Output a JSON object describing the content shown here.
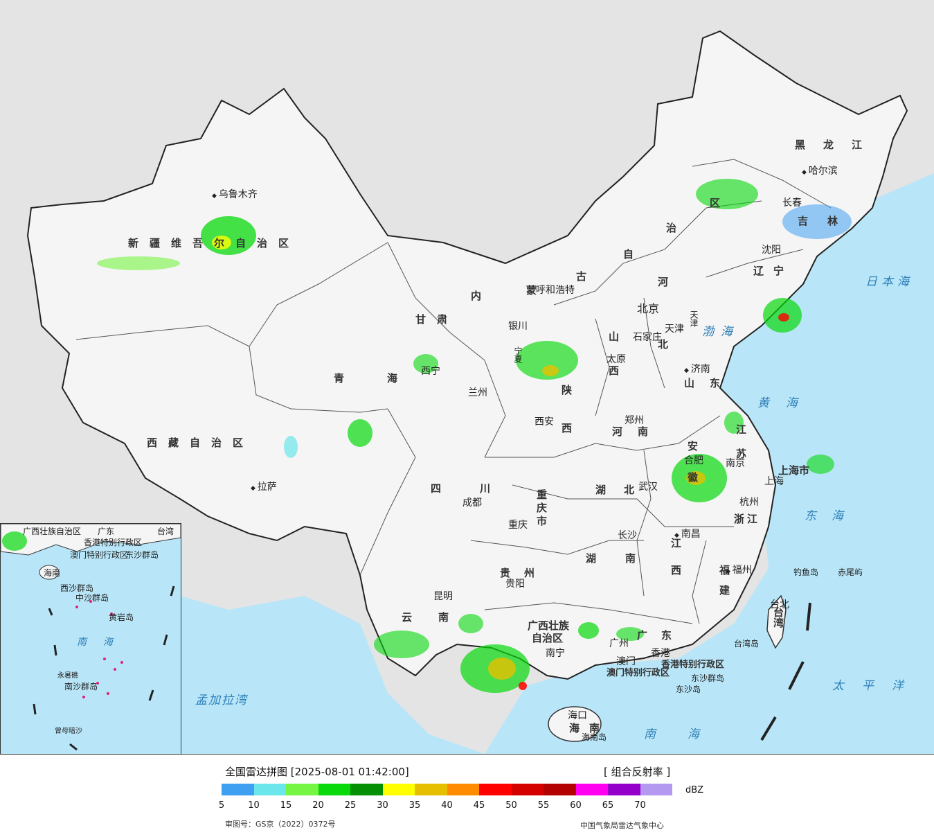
{
  "legend": {
    "title": "全国雷达拼图 [2025-08-01 01:42:00]",
    "product": "[ 组合反射率 ]",
    "unit": "dBZ",
    "review_number": "审图号：GS京（2022）0372号",
    "source": "中国气象局雷达气象中心",
    "ticks": [
      "5",
      "10",
      "15",
      "20",
      "25",
      "30",
      "35",
      "40",
      "45",
      "50",
      "55",
      "60",
      "65",
      "70"
    ],
    "colors": [
      "#3f9ff0",
      "#6be6ea",
      "#76f542",
      "#07d90b",
      "#048f04",
      "#ffff00",
      "#e6c000",
      "#ff8c00",
      "#ff0000",
      "#d40000",
      "#b30000",
      "#ff00f0",
      "#9400c9",
      "#b39af0"
    ]
  },
  "provinces": {
    "xinjiang": "新疆维吾尔自治区",
    "xizang": "西藏自治区",
    "qinghai": "青海",
    "gansu": "甘肃",
    "neimenggu_1": "内",
    "neimenggu_2": "蒙",
    "neimenggu_3": "古",
    "neimenggu_4": "自",
    "neimenggu_5": "治",
    "neimenggu_6": "区",
    "heilongjiang": "黑龙江",
    "jilin": "吉林",
    "liaoning": "辽宁",
    "hebei_1": "河",
    "hebei_2": "北",
    "shanxi": "山西",
    "shaanxi": "陕西",
    "henan": "河南",
    "shandong": "山东",
    "jiangsu": "江苏",
    "anhui": "安徽",
    "sichuan": "四川",
    "chongqing": "重庆市",
    "hubei": "湖北",
    "hunan": "湖南",
    "jiangxi": "江西",
    "zhejiang": "浙江",
    "fujian": "福建",
    "guizhou": "贵州",
    "yunnan": "云南",
    "guangxi_1": "广西壮族",
    "guangxi_2": "自治区",
    "guangdong": "广东",
    "hainan": "海南",
    "taiwan": "台湾",
    "ningxia": "宁夏",
    "shanghai": "上海市",
    "tianjin": "天津",
    "hongkong": "香港特别行政区",
    "macau": "澳门特别行政区"
  },
  "cities": {
    "urumqi": "乌鲁木齐",
    "lhasa": "拉萨",
    "xining": "西宁",
    "lanzhou": "兰州",
    "yinchuan": "银川",
    "hohhot": "呼和浩特",
    "beijing": "北京",
    "tianjin": "天津",
    "shijiazhuang": "石家庄",
    "taiyuan": "太原",
    "jinan": "济南",
    "zhengzhou": "郑州",
    "xian": "西安",
    "chengdu": "成都",
    "chongqing": "重庆",
    "wuhan": "武汉",
    "hefei": "合肥",
    "nanjing": "南京",
    "shanghai": "上海",
    "hangzhou": "杭州",
    "nanchang": "南昌",
    "changsha": "长沙",
    "guiyang": "贵阳",
    "kunming": "昆明",
    "nanning": "南宁",
    "guangzhou": "广州",
    "hongkong": "香港",
    "macau": "澳门",
    "fuzhou": "福州",
    "taipei": "台北",
    "haikou": "海口",
    "harbin": "哈尔滨",
    "changchun": "长春",
    "shenyang": "沈阳"
  },
  "islands": {
    "diaoyu": "钓鱼岛",
    "chiwei": "赤尾屿",
    "taiwan_island": "台湾岛",
    "dongsha_islands": "东沙群岛",
    "dongsha_island": "东沙岛",
    "hainan_island": "海南岛"
  },
  "seas": {
    "bohai": "渤海",
    "huanghai": "黄海",
    "donghai": "东海",
    "nanhai": "南海",
    "riben": "日本海",
    "taipingyang": "太平洋",
    "mengjiala": "孟加拉湾"
  },
  "inset": {
    "guangxi": "广西壮族自治区",
    "guangdong": "广东",
    "taiwan": "台湾",
    "hk": "香港特别行政区",
    "macau": "澳门特别行政区",
    "dongsha": "东沙群岛",
    "hainan": "海南",
    "xisha": "西沙群岛",
    "zhongsha": "中沙群岛",
    "huangyan": "黄岩岛",
    "nanhai": "南海",
    "nansha": "南沙群岛",
    "yongshu": "永暑礁",
    "zengmu": "曾母暗沙"
  }
}
